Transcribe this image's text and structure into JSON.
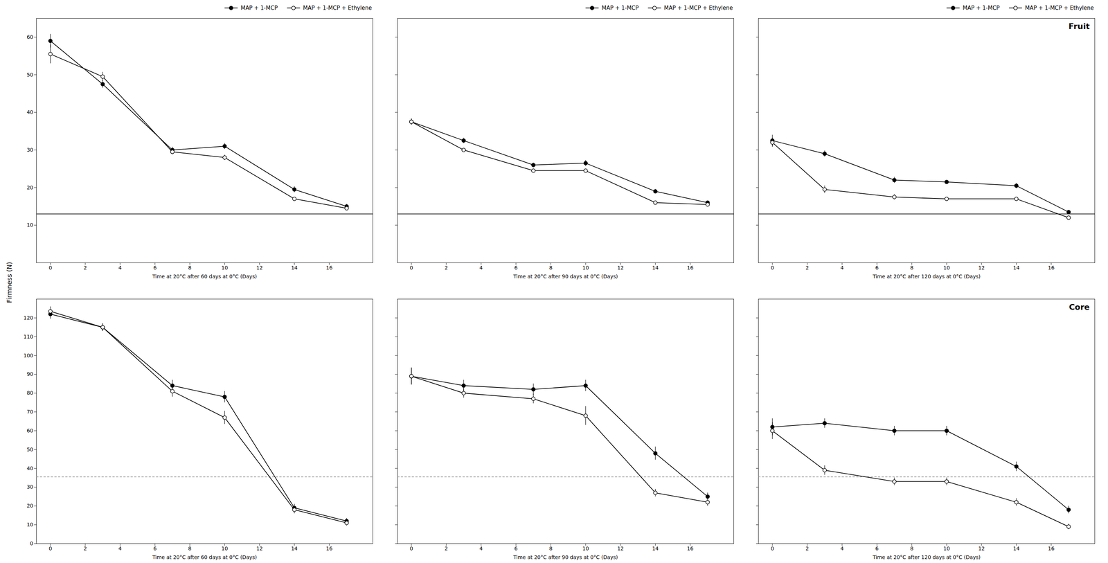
{
  "chart_data": [
    {
      "type": "line",
      "xlabel": "Time at 20°C after 60 days at 0°C (Days)",
      "ylabel": "Firmness (N)",
      "x": [
        0,
        3,
        7,
        10,
        14,
        17
      ],
      "series": [
        {
          "name": "MAP + 1-MCP",
          "color": "black",
          "marker": "circle",
          "values": [
            59.0,
            47.5,
            30.0,
            31.0,
            19.5,
            15.0
          ],
          "errors": [
            1.8,
            1.0,
            0.8,
            0.8,
            0.8,
            0.6
          ]
        },
        {
          "name": "MAP + 1-MCP + Ethylene",
          "color": "black",
          "marker": "open_circle",
          "values": [
            55.5,
            49.5,
            29.5,
            28.0,
            17.0,
            14.5
          ],
          "errors": [
            2.5,
            1.2,
            0.7,
            0.7,
            0.5,
            0.5
          ]
        }
      ],
      "reference_lines": [
        {
          "value": 13.0,
          "color": "black",
          "line_style": "solid"
        }
      ],
      "xlim": [
        -0.8,
        18.5
      ],
      "xticks": [
        0,
        2,
        4,
        6,
        8,
        10,
        12,
        14,
        16
      ],
      "ylim": [
        0,
        65
      ],
      "yticks": [
        10,
        20,
        30,
        40,
        50,
        60
      ],
      "legend": "upper right"
    },
    {
      "type": "line",
      "xlabel": "Time at 20°C after 90 days at 0°C (Days)",
      "x": [
        0,
        3,
        7,
        10,
        14,
        17
      ],
      "series": [
        {
          "name": "MAP + 1-MCP",
          "color": "black",
          "marker": "circle",
          "values": [
            37.5,
            32.5,
            26.0,
            26.5,
            19.0,
            16.0
          ],
          "errors": [
            0.8,
            0.7,
            0.6,
            0.8,
            0.6,
            0.5
          ]
        },
        {
          "name": "MAP + 1-MCP + Ethylene",
          "color": "black",
          "marker": "open_circle",
          "values": [
            37.5,
            30.0,
            24.5,
            24.5,
            16.0,
            15.5
          ],
          "errors": [
            0.8,
            0.5,
            0.5,
            0.5,
            0.4,
            0.4
          ]
        }
      ],
      "reference_lines": [
        {
          "value": 13.0,
          "color": "black",
          "line_style": "solid"
        }
      ],
      "xlim": [
        -0.8,
        18.5
      ],
      "xticks": [
        0,
        2,
        4,
        6,
        8,
        10,
        12,
        14,
        16
      ],
      "ylim": [
        0,
        65
      ],
      "yticks": [
        10,
        20,
        30,
        40,
        50,
        60
      ],
      "tick_labels": "x",
      "legend": "upper right"
    },
    {
      "type": "line",
      "xlabel": "Time at 20°C after 120 days at 0°C (Days)",
      "annotations": [
        "Fruit"
      ],
      "x": [
        0,
        3,
        7,
        10,
        14,
        17
      ],
      "series": [
        {
          "name": "MAP + 1-MCP",
          "color": "black",
          "marker": "circle",
          "values": [
            32.5,
            29.0,
            22.0,
            21.5,
            20.5,
            13.5
          ],
          "errors": [
            1.5,
            0.8,
            0.8,
            0.5,
            0.7,
            0.5
          ]
        },
        {
          "name": "MAP + 1-MCP + Ethylene",
          "color": "black",
          "marker": "open_circle",
          "values": [
            32.0,
            19.5,
            17.5,
            17.0,
            17.0,
            12.0
          ],
          "errors": [
            1.2,
            1.0,
            0.7,
            0.5,
            0.5,
            0.4
          ]
        }
      ],
      "reference_lines": [
        {
          "value": 13.0,
          "color": "black",
          "line_style": "solid"
        }
      ],
      "xlim": [
        -0.8,
        18.5
      ],
      "xticks": [
        0,
        2,
        4,
        6,
        8,
        10,
        12,
        14,
        16
      ],
      "ylim": [
        0,
        65
      ],
      "yticks": [
        10,
        20,
        30,
        40,
        50,
        60
      ],
      "tick_labels": "x",
      "legend": "upper right"
    },
    {
      "type": "line",
      "xlabel": "Time at 20°C after 60 days at 0°C (Days)",
      "x": [
        0,
        3,
        7,
        10,
        14,
        17
      ],
      "series": [
        {
          "name": "MAP + 1-MCP",
          "color": "black",
          "marker": "circle",
          "values": [
            122.0,
            115.0,
            84.0,
            78.0,
            19.0,
            12.0
          ],
          "errors": [
            2.5,
            2.0,
            3.0,
            3.0,
            2.0,
            1.5
          ]
        },
        {
          "name": "MAP + 1-MCP + Ethylene",
          "color": "black",
          "marker": "open_circle",
          "values": [
            123.5,
            115.0,
            81.0,
            67.0,
            18.0,
            11.0
          ],
          "errors": [
            2.5,
            2.0,
            3.0,
            3.5,
            2.0,
            1.5
          ]
        }
      ],
      "reference_lines": [
        {
          "value": 35.5,
          "color": "gray",
          "line_style": "dashed"
        }
      ],
      "xlim": [
        -0.8,
        18.5
      ],
      "xticks": [
        0,
        2,
        4,
        6,
        8,
        10,
        12,
        14,
        16
      ],
      "ylim": [
        0,
        130
      ],
      "yticks": [
        0,
        10,
        20,
        30,
        40,
        50,
        60,
        70,
        80,
        90,
        100,
        110,
        120
      ]
    },
    {
      "type": "line",
      "xlabel": "Time at 20°C after 90 days at 0°C (Days)",
      "x": [
        0,
        3,
        7,
        10,
        14,
        17
      ],
      "series": [
        {
          "name": "MAP + 1-MCP",
          "color": "black",
          "marker": "circle",
          "values": [
            89.0,
            84.0,
            82.0,
            84.0,
            48.0,
            25.0
          ],
          "errors": [
            4.5,
            3.0,
            3.0,
            3.0,
            3.5,
            2.0
          ]
        },
        {
          "name": "MAP + 1-MCP + Ethylene",
          "color": "black",
          "marker": "open_circle",
          "values": [
            89.0,
            80.0,
            77.0,
            68.0,
            27.0,
            22.0
          ],
          "errors": [
            4.5,
            2.5,
            2.5,
            5.0,
            2.0,
            2.0
          ]
        }
      ],
      "reference_lines": [
        {
          "value": 35.5,
          "color": "gray",
          "line_style": "dashed"
        }
      ],
      "xlim": [
        -0.8,
        18.5
      ],
      "xticks": [
        0,
        2,
        4,
        6,
        8,
        10,
        12,
        14,
        16
      ],
      "ylim": [
        0,
        130
      ],
      "yticks": [
        0,
        10,
        20,
        30,
        40,
        50,
        60,
        70,
        80,
        90,
        100,
        110,
        120
      ],
      "tick_labels": "x"
    },
    {
      "type": "line",
      "xlabel": "Time at 20°C after 120 days at 0°C (Days)",
      "annotations": [
        "Core"
      ],
      "x": [
        0,
        3,
        7,
        10,
        14,
        17
      ],
      "series": [
        {
          "name": "MAP + 1-MCP",
          "color": "black",
          "marker": "circle",
          "values": [
            62.0,
            64.0,
            60.0,
            60.0,
            41.0,
            18.0
          ],
          "errors": [
            4.5,
            2.5,
            2.5,
            2.5,
            2.5,
            2.0
          ]
        },
        {
          "name": "MAP + 1-MCP + Ethylene",
          "color": "black",
          "marker": "open_circle",
          "values": [
            60.0,
            39.0,
            33.0,
            33.0,
            22.0,
            9.0
          ],
          "errors": [
            4.5,
            2.5,
            2.0,
            2.0,
            2.0,
            1.5
          ]
        }
      ],
      "reference_lines": [
        {
          "value": 35.5,
          "color": "gray",
          "line_style": "dashed"
        }
      ],
      "xlim": [
        -0.8,
        18.5
      ],
      "xticks": [
        0,
        2,
        4,
        6,
        8,
        10,
        12,
        14,
        16
      ],
      "ylim": [
        0,
        130
      ],
      "yticks": [
        0,
        10,
        20,
        30,
        40,
        50,
        60,
        70,
        80,
        90,
        100,
        110,
        120
      ],
      "tick_labels": "x"
    }
  ]
}
